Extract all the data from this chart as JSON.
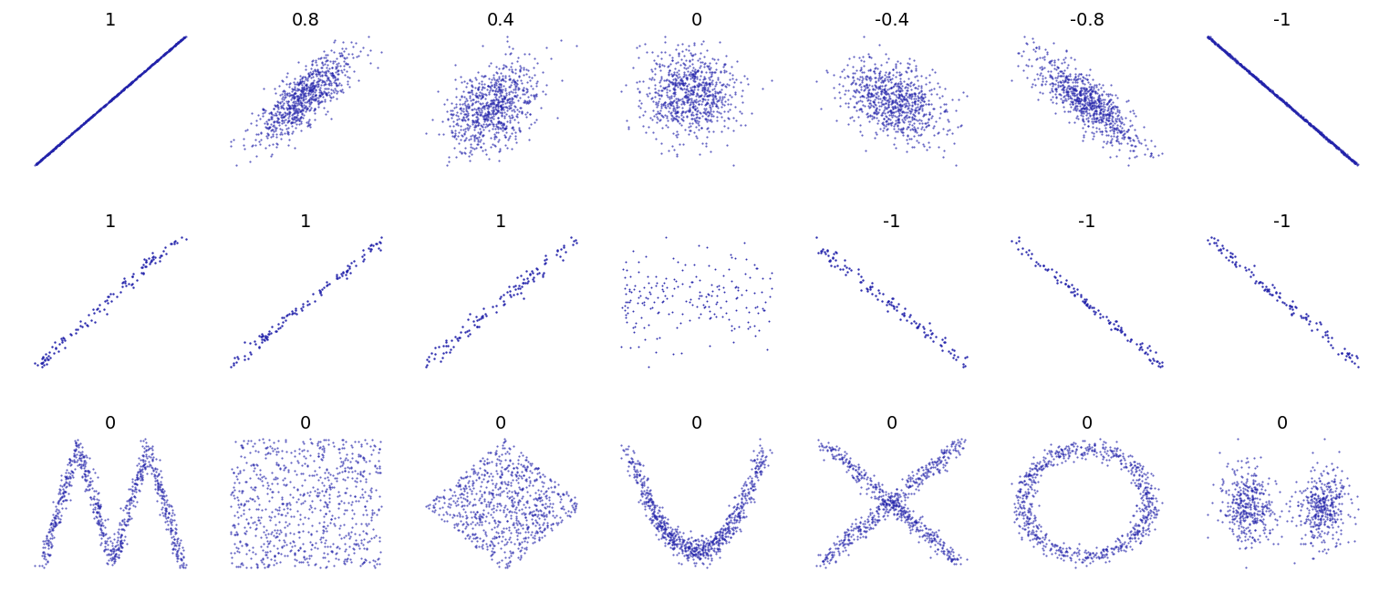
{
  "point_color": "#2222aa",
  "point_size": 2.5,
  "point_alpha": 0.7,
  "n_points": 800,
  "n_points_shape": 800,
  "seed": 42,
  "row1_labels": [
    "1",
    "0.8",
    "0.4",
    "0",
    "-0.4",
    "-0.8",
    "-1"
  ],
  "row2_labels": [
    "1",
    "1",
    "1",
    "",
    "-1",
    "-1",
    "-1"
  ],
  "row3_labels": [
    "0",
    "0",
    "0",
    "0",
    "0",
    "0",
    "0"
  ],
  "label_fontsize": 14,
  "fig_width": 15.12,
  "fig_height": 6.49,
  "bg_color": "white"
}
